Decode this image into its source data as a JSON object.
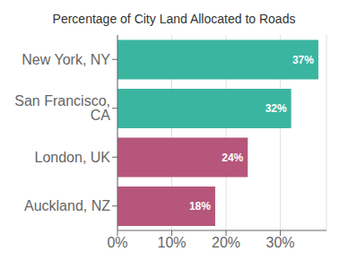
{
  "chart_data": {
    "type": "bar",
    "orientation": "horizontal",
    "title": "Percentage of City Land Allocated to Roads",
    "categories": [
      "Auckland, NZ",
      "London, UK",
      "San Francisco, CA",
      "New York, NY"
    ],
    "values": [
      18,
      24,
      32,
      37
    ],
    "value_labels": [
      "18%",
      "24%",
      "32%",
      "37%"
    ],
    "data_labels": true,
    "colors": [
      "#b5567a",
      "#b5567a",
      "#3ab5a0",
      "#3ab5a0"
    ],
    "xlim": [
      0,
      38.5
    ],
    "xticks": [
      {
        "value": 0,
        "label": "0%"
      },
      {
        "value": 10,
        "label": "10%"
      },
      {
        "value": 20,
        "label": "20%"
      },
      {
        "value": 30,
        "label": "30%"
      }
    ],
    "grid": true
  }
}
